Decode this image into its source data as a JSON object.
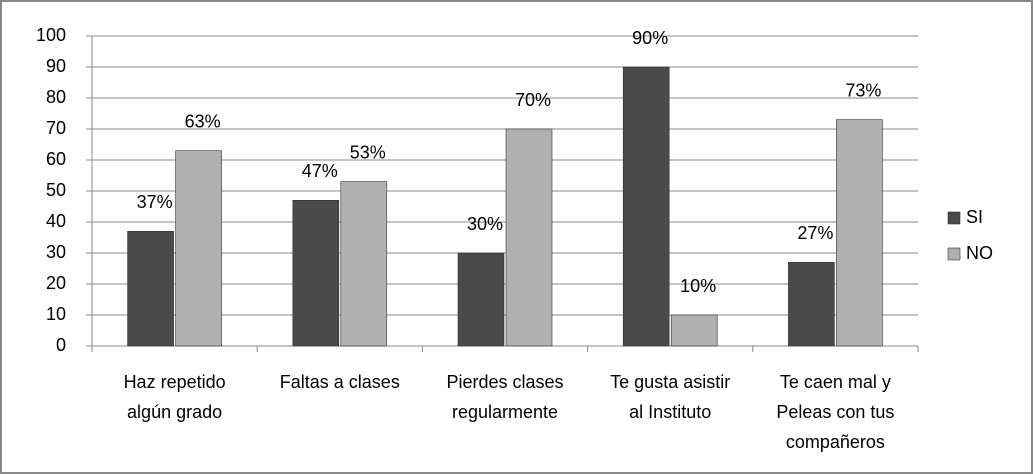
{
  "chart_data": {
    "type": "bar",
    "categories": [
      [
        "Haz repetido",
        "algún grado"
      ],
      [
        "Faltas a clases"
      ],
      [
        "Pierdes clases",
        "regularmente"
      ],
      [
        "Te gusta asistir",
        "al Instituto"
      ],
      [
        "Te caen mal y",
        "Peleas con tus",
        "compañeros"
      ]
    ],
    "series": [
      {
        "name": "SI",
        "color": "#4a4a4a",
        "values": [
          37,
          47,
          30,
          90,
          27
        ],
        "value_labels": [
          "37%",
          "47%",
          "30%",
          "90%",
          "27%"
        ]
      },
      {
        "name": "NO",
        "color": "#b0b0b0",
        "values": [
          63,
          53,
          70,
          10,
          73
        ],
        "value_labels": [
          "63%",
          "53%",
          "70%",
          "10%",
          "73%"
        ]
      }
    ],
    "ylim": [
      0,
      100
    ],
    "yticks": [
      0,
      10,
      20,
      30,
      40,
      50,
      60,
      70,
      80,
      90,
      100
    ],
    "grid": true,
    "legend": "right"
  }
}
